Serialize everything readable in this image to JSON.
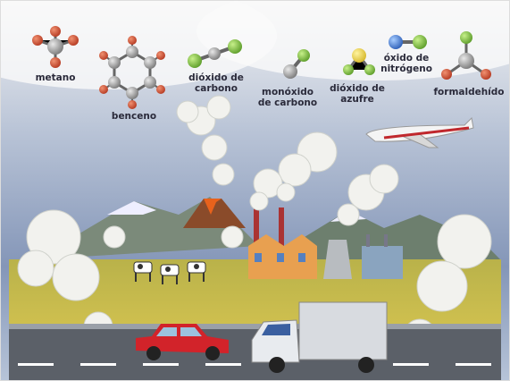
{
  "nodes": [
    {
      "lines": [
        "metano"
      ]
    },
    {
      "lines": [
        "benceno"
      ]
    },
    {
      "lines": [
        "dióxido de",
        "carbono"
      ]
    },
    {
      "lines": [
        "monóxido",
        "de carbono"
      ]
    },
    {
      "lines": [
        "dióxido de",
        "azufre"
      ]
    },
    {
      "lines": [
        "óxido de",
        "nitrógeno"
      ]
    },
    {
      "lines": [
        "formaldehído"
      ]
    }
  ]
}
